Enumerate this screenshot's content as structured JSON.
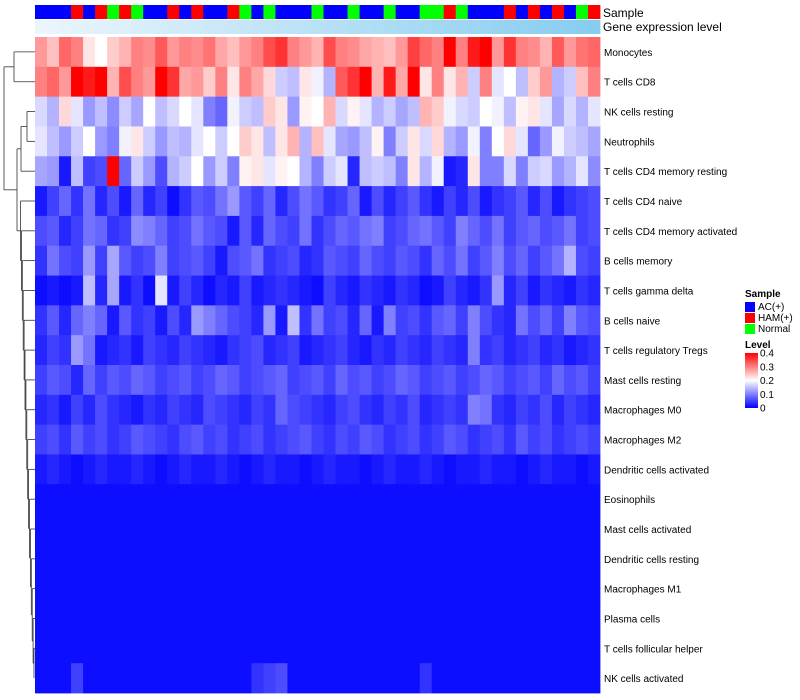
{
  "chart_data": {
    "type": "heatmap",
    "title": "",
    "annotation_labels": {
      "sample": "Sample",
      "gene": "Gene expression level"
    },
    "row_labels": [
      "Monocytes",
      "T cells CD8",
      "NK cells resting",
      "Neutrophils",
      "T cells CD4 memory resting",
      "T cells CD4 naive",
      "T cells CD4 memory activated",
      "B cells memory",
      "T cells gamma delta",
      "B cells naive",
      "T cells regulatory  Tregs",
      "Mast cells resting",
      "Macrophages M0",
      "Macrophages M2",
      "Dendritic cells activated",
      "Eosinophils",
      "Mast cells activated",
      "Dendritic cells resting",
      "Macrophages M1",
      "Plasma cells",
      "T cells follicular helper",
      "NK cells activated"
    ],
    "sample_groups": [
      0,
      0,
      0,
      1,
      0,
      1,
      2,
      1,
      2,
      0,
      0,
      1,
      0,
      1,
      0,
      0,
      1,
      2,
      0,
      2,
      0,
      0,
      0,
      2,
      0,
      0,
      2,
      0,
      0,
      2,
      0,
      0,
      2,
      2,
      1,
      2,
      0,
      0,
      0,
      1,
      0,
      1,
      0,
      1,
      0,
      2,
      1
    ],
    "sample_legend": {
      "title": "Sample",
      "items": [
        {
          "label": "AC(+)",
          "color": "#0000ff"
        },
        {
          "label": "HAM(+)",
          "color": "#ff0000"
        },
        {
          "label": "Normal",
          "color": "#00ff00"
        }
      ]
    },
    "level_legend": {
      "title": "Level",
      "ticks": [
        0.4,
        0.3,
        0.2,
        0.1,
        0
      ],
      "range": [
        0,
        0.4
      ],
      "colors": {
        "low": "#0000ff",
        "mid": "#ffffff",
        "high": "#ff0000"
      },
      "mid_value": 0.2
    },
    "row_base": [
      0.27,
      0.3,
      0.18,
      0.17,
      0.14,
      0.05,
      0.07,
      0.06,
      0.03,
      0.05,
      0.04,
      0.06,
      0.04,
      0.05,
      0.02,
      0.01,
      0.01,
      0.01,
      0.01,
      0.01,
      0.01,
      0.015
    ],
    "values": [
      [
        0.28,
        0.25,
        0.32,
        0.3,
        0.22,
        0.2,
        0.24,
        0.26,
        0.3,
        0.29,
        0.33,
        0.28,
        0.3,
        0.29,
        0.31,
        0.27,
        0.25,
        0.28,
        0.3,
        0.34,
        0.36,
        0.3,
        0.28,
        0.26,
        0.34,
        0.3,
        0.29,
        0.27,
        0.26,
        0.25,
        0.28,
        0.35,
        0.32,
        0.3,
        0.4,
        0.3,
        0.38,
        0.4,
        0.28,
        0.36,
        0.3,
        0.29,
        0.26,
        0.33,
        0.28,
        0.31,
        0.32
      ],
      [
        0.3,
        0.32,
        0.28,
        0.4,
        0.38,
        0.4,
        0.26,
        0.34,
        0.3,
        0.28,
        0.4,
        0.36,
        0.27,
        0.28,
        0.24,
        0.3,
        0.22,
        0.3,
        0.27,
        0.23,
        0.16,
        0.15,
        0.22,
        0.19,
        0.14,
        0.33,
        0.36,
        0.4,
        0.26,
        0.38,
        0.27,
        0.4,
        0.22,
        0.3,
        0.22,
        0.26,
        0.16,
        0.3,
        0.18,
        0.2,
        0.15,
        0.24,
        0.28,
        0.14,
        0.16,
        0.25,
        0.3
      ],
      [
        0.17,
        0.14,
        0.23,
        0.18,
        0.12,
        0.15,
        0.11,
        0.16,
        0.13,
        0.2,
        0.15,
        0.17,
        0.2,
        0.18,
        0.1,
        0.08,
        0.19,
        0.16,
        0.15,
        0.24,
        0.22,
        0.12,
        0.21,
        0.2,
        0.26,
        0.17,
        0.21,
        0.18,
        0.14,
        0.16,
        0.13,
        0.15,
        0.26,
        0.24,
        0.19,
        0.17,
        0.16,
        0.2,
        0.19,
        0.15,
        0.21,
        0.22,
        0.18,
        0.13,
        0.17,
        0.14,
        0.18
      ],
      [
        0.18,
        0.15,
        0.12,
        0.16,
        0.2,
        0.12,
        0.1,
        0.19,
        0.22,
        0.16,
        0.12,
        0.15,
        0.14,
        0.18,
        0.2,
        0.16,
        0.2,
        0.24,
        0.22,
        0.15,
        0.22,
        0.26,
        0.14,
        0.25,
        0.18,
        0.13,
        0.12,
        0.15,
        0.21,
        0.1,
        0.16,
        0.22,
        0.17,
        0.23,
        0.14,
        0.12,
        0.19,
        0.1,
        0.2,
        0.23,
        0.18,
        0.08,
        0.12,
        0.19,
        0.16,
        0.15,
        0.13
      ],
      [
        0.13,
        0.12,
        0.02,
        0.15,
        0.05,
        0.06,
        0.4,
        0.08,
        0.16,
        0.12,
        0.06,
        0.14,
        0.16,
        0.2,
        0.12,
        0.16,
        0.1,
        0.21,
        0.22,
        0.18,
        0.21,
        0.2,
        0.14,
        0.1,
        0.16,
        0.18,
        0.03,
        0.15,
        0.16,
        0.15,
        0.1,
        0.22,
        0.14,
        0.19,
        0.02,
        0.03,
        0.22,
        0.1,
        0.1,
        0.17,
        0.1,
        0.16,
        0.17,
        0.12,
        0.14,
        0.18,
        0.11
      ],
      [
        0.02,
        0.05,
        0.08,
        0.04,
        0.09,
        0.03,
        0.06,
        0.02,
        0.08,
        0.03,
        0.05,
        0.01,
        0.04,
        0.07,
        0.06,
        0.09,
        0.12,
        0.07,
        0.05,
        0.08,
        0.03,
        0.06,
        0.09,
        0.07,
        0.04,
        0.05,
        0.08,
        0.02,
        0.06,
        0.03,
        0.05,
        0.07,
        0.04,
        0.02,
        0.05,
        0.03,
        0.06,
        0.02,
        0.04,
        0.05,
        0.07,
        0.03,
        0.06,
        0.02,
        0.04,
        0.05,
        0.06
      ],
      [
        0.06,
        0.07,
        0.03,
        0.05,
        0.09,
        0.08,
        0.04,
        0.05,
        0.11,
        0.1,
        0.08,
        0.05,
        0.06,
        0.09,
        0.07,
        0.06,
        0.02,
        0.07,
        0.03,
        0.08,
        0.06,
        0.05,
        0.09,
        0.04,
        0.06,
        0.08,
        0.07,
        0.09,
        0.1,
        0.05,
        0.06,
        0.08,
        0.09,
        0.07,
        0.05,
        0.1,
        0.08,
        0.06,
        0.09,
        0.05,
        0.07,
        0.08,
        0.06,
        0.07,
        0.09,
        0.05,
        0.06
      ],
      [
        0.04,
        0.09,
        0.06,
        0.05,
        0.12,
        0.05,
        0.13,
        0.07,
        0.05,
        0.06,
        0.1,
        0.05,
        0.06,
        0.07,
        0.05,
        0.02,
        0.06,
        0.07,
        0.09,
        0.04,
        0.05,
        0.06,
        0.03,
        0.04,
        0.07,
        0.06,
        0.05,
        0.08,
        0.06,
        0.05,
        0.07,
        0.06,
        0.04,
        0.08,
        0.06,
        0.09,
        0.05,
        0.07,
        0.1,
        0.06,
        0.08,
        0.05,
        0.07,
        0.09,
        0.14,
        0.06,
        0.05
      ],
      [
        0.01,
        0.02,
        0.01,
        0.02,
        0.15,
        0.03,
        0.13,
        0.02,
        0.04,
        0.01,
        0.18,
        0.02,
        0.05,
        0.03,
        0.01,
        0.03,
        0.02,
        0.05,
        0.02,
        0.03,
        0.04,
        0.03,
        0.02,
        0.01,
        0.05,
        0.03,
        0.02,
        0.04,
        0.03,
        0.02,
        0.04,
        0.03,
        0.01,
        0.02,
        0.05,
        0.03,
        0.02,
        0.04,
        0.12,
        0.03,
        0.05,
        0.02,
        0.04,
        0.03,
        0.02,
        0.04,
        0.03
      ],
      [
        0.04,
        0.07,
        0.03,
        0.08,
        0.1,
        0.08,
        0.02,
        0.07,
        0.04,
        0.05,
        0.02,
        0.06,
        0.03,
        0.12,
        0.1,
        0.08,
        0.06,
        0.05,
        0.03,
        0.12,
        0.02,
        0.15,
        0.04,
        0.09,
        0.05,
        0.06,
        0.03,
        0.08,
        0.02,
        0.1,
        0.05,
        0.06,
        0.04,
        0.07,
        0.08,
        0.05,
        0.1,
        0.06,
        0.04,
        0.03,
        0.09,
        0.06,
        0.08,
        0.05,
        0.1,
        0.07,
        0.06
      ],
      [
        0.03,
        0.05,
        0.04,
        0.12,
        0.09,
        0.02,
        0.03,
        0.04,
        0.02,
        0.05,
        0.04,
        0.03,
        0.05,
        0.04,
        0.03,
        0.02,
        0.04,
        0.05,
        0.06,
        0.03,
        0.04,
        0.05,
        0.02,
        0.03,
        0.04,
        0.05,
        0.03,
        0.02,
        0.04,
        0.03,
        0.05,
        0.04,
        0.03,
        0.05,
        0.04,
        0.03,
        0.1,
        0.04,
        0.05,
        0.03,
        0.04,
        0.05,
        0.03,
        0.04,
        0.02,
        0.03,
        0.04
      ],
      [
        0.05,
        0.07,
        0.06,
        0.03,
        0.08,
        0.05,
        0.07,
        0.06,
        0.08,
        0.07,
        0.05,
        0.06,
        0.07,
        0.05,
        0.06,
        0.08,
        0.07,
        0.05,
        0.06,
        0.07,
        0.08,
        0.05,
        0.06,
        0.07,
        0.05,
        0.08,
        0.06,
        0.07,
        0.05,
        0.06,
        0.08,
        0.07,
        0.05,
        0.06,
        0.07,
        0.05,
        0.06,
        0.08,
        0.07,
        0.05,
        0.06,
        0.07,
        0.05,
        0.08,
        0.06,
        0.07,
        0.05
      ],
      [
        0.03,
        0.04,
        0.02,
        0.05,
        0.03,
        0.06,
        0.04,
        0.03,
        0.02,
        0.04,
        0.03,
        0.05,
        0.04,
        0.03,
        0.06,
        0.05,
        0.04,
        0.03,
        0.05,
        0.04,
        0.08,
        0.06,
        0.05,
        0.04,
        0.03,
        0.05,
        0.06,
        0.04,
        0.03,
        0.05,
        0.04,
        0.06,
        0.03,
        0.04,
        0.05,
        0.04,
        0.1,
        0.09,
        0.04,
        0.03,
        0.05,
        0.04,
        0.06,
        0.03,
        0.05,
        0.04,
        0.03
      ],
      [
        0.05,
        0.06,
        0.04,
        0.07,
        0.05,
        0.06,
        0.04,
        0.05,
        0.07,
        0.06,
        0.05,
        0.04,
        0.06,
        0.07,
        0.05,
        0.06,
        0.04,
        0.05,
        0.06,
        0.04,
        0.05,
        0.06,
        0.07,
        0.05,
        0.04,
        0.06,
        0.05,
        0.07,
        0.06,
        0.04,
        0.05,
        0.06,
        0.04,
        0.05,
        0.07,
        0.06,
        0.04,
        0.05,
        0.06,
        0.04,
        0.07,
        0.05,
        0.06,
        0.04,
        0.05,
        0.06,
        0.05
      ],
      [
        0.02,
        0.03,
        0.02,
        0.01,
        0.02,
        0.03,
        0.02,
        0.02,
        0.03,
        0.02,
        0.01,
        0.02,
        0.03,
        0.02,
        0.02,
        0.03,
        0.02,
        0.01,
        0.02,
        0.03,
        0.02,
        0.02,
        0.01,
        0.02,
        0.03,
        0.02,
        0.02,
        0.01,
        0.02,
        0.03,
        0.02,
        0.02,
        0.03,
        0.02,
        0.01,
        0.02,
        0.02,
        0.03,
        0.02,
        0.02,
        0.01,
        0.02,
        0.03,
        0.02,
        0.02,
        0.01,
        0.02
      ],
      [
        0.01,
        0.01,
        0.01,
        0.01,
        0.01,
        0.01,
        0.01,
        0.01,
        0.01,
        0.01,
        0.01,
        0.01,
        0.01,
        0.01,
        0.01,
        0.01,
        0.01,
        0.01,
        0.01,
        0.01,
        0.01,
        0.01,
        0.01,
        0.01,
        0.01,
        0.01,
        0.01,
        0.01,
        0.01,
        0.01,
        0.01,
        0.01,
        0.01,
        0.01,
        0.01,
        0.01,
        0.01,
        0.01,
        0.01,
        0.01,
        0.01,
        0.01,
        0.01,
        0.01,
        0.01,
        0.01,
        0.01
      ],
      [
        0.01,
        0.01,
        0.01,
        0.01,
        0.01,
        0.01,
        0.01,
        0.01,
        0.01,
        0.01,
        0.01,
        0.01,
        0.01,
        0.01,
        0.01,
        0.01,
        0.01,
        0.01,
        0.01,
        0.01,
        0.01,
        0.01,
        0.01,
        0.01,
        0.01,
        0.01,
        0.01,
        0.01,
        0.01,
        0.01,
        0.01,
        0.01,
        0.01,
        0.01,
        0.01,
        0.01,
        0.01,
        0.01,
        0.01,
        0.01,
        0.01,
        0.01,
        0.01,
        0.01,
        0.01,
        0.01,
        0.01
      ],
      [
        0.01,
        0.01,
        0.01,
        0.01,
        0.01,
        0.01,
        0.01,
        0.01,
        0.01,
        0.01,
        0.01,
        0.01,
        0.01,
        0.01,
        0.01,
        0.01,
        0.01,
        0.01,
        0.01,
        0.01,
        0.01,
        0.01,
        0.01,
        0.01,
        0.01,
        0.01,
        0.01,
        0.01,
        0.01,
        0.01,
        0.01,
        0.01,
        0.01,
        0.01,
        0.01,
        0.01,
        0.01,
        0.01,
        0.01,
        0.01,
        0.01,
        0.01,
        0.01,
        0.01,
        0.01,
        0.01,
        0.01
      ],
      [
        0.01,
        0.01,
        0.01,
        0.01,
        0.01,
        0.01,
        0.01,
        0.01,
        0.01,
        0.01,
        0.01,
        0.01,
        0.01,
        0.01,
        0.01,
        0.01,
        0.01,
        0.01,
        0.01,
        0.01,
        0.01,
        0.01,
        0.01,
        0.01,
        0.01,
        0.01,
        0.01,
        0.01,
        0.01,
        0.01,
        0.01,
        0.01,
        0.01,
        0.01,
        0.01,
        0.01,
        0.01,
        0.01,
        0.01,
        0.01,
        0.01,
        0.01,
        0.01,
        0.01,
        0.01,
        0.01,
        0.01
      ],
      [
        0.01,
        0.01,
        0.01,
        0.01,
        0.01,
        0.01,
        0.01,
        0.01,
        0.01,
        0.01,
        0.01,
        0.01,
        0.01,
        0.01,
        0.01,
        0.01,
        0.01,
        0.01,
        0.01,
        0.01,
        0.01,
        0.01,
        0.01,
        0.01,
        0.01,
        0.01,
        0.01,
        0.01,
        0.01,
        0.01,
        0.01,
        0.01,
        0.01,
        0.01,
        0.01,
        0.01,
        0.01,
        0.01,
        0.01,
        0.01,
        0.01,
        0.01,
        0.01,
        0.01,
        0.01,
        0.01,
        0.01
      ],
      [
        0.01,
        0.01,
        0.01,
        0.01,
        0.01,
        0.01,
        0.01,
        0.01,
        0.01,
        0.01,
        0.01,
        0.01,
        0.01,
        0.01,
        0.01,
        0.01,
        0.01,
        0.01,
        0.01,
        0.01,
        0.01,
        0.01,
        0.01,
        0.01,
        0.01,
        0.01,
        0.01,
        0.01,
        0.01,
        0.01,
        0.01,
        0.01,
        0.01,
        0.01,
        0.01,
        0.01,
        0.01,
        0.01,
        0.01,
        0.01,
        0.01,
        0.01,
        0.01,
        0.01,
        0.01,
        0.01,
        0.01
      ],
      [
        0.01,
        0.01,
        0.01,
        0.05,
        0.01,
        0.01,
        0.01,
        0.01,
        0.01,
        0.01,
        0.01,
        0.01,
        0.01,
        0.01,
        0.01,
        0.01,
        0.01,
        0.01,
        0.04,
        0.05,
        0.06,
        0.01,
        0.01,
        0.01,
        0.01,
        0.01,
        0.01,
        0.01,
        0.01,
        0.01,
        0.01,
        0.01,
        0.04,
        0.01,
        0.01,
        0.01,
        0.01,
        0.01,
        0.01,
        0.01,
        0.01,
        0.01,
        0.01,
        0.01,
        0.01,
        0.01,
        0.01
      ]
    ]
  }
}
